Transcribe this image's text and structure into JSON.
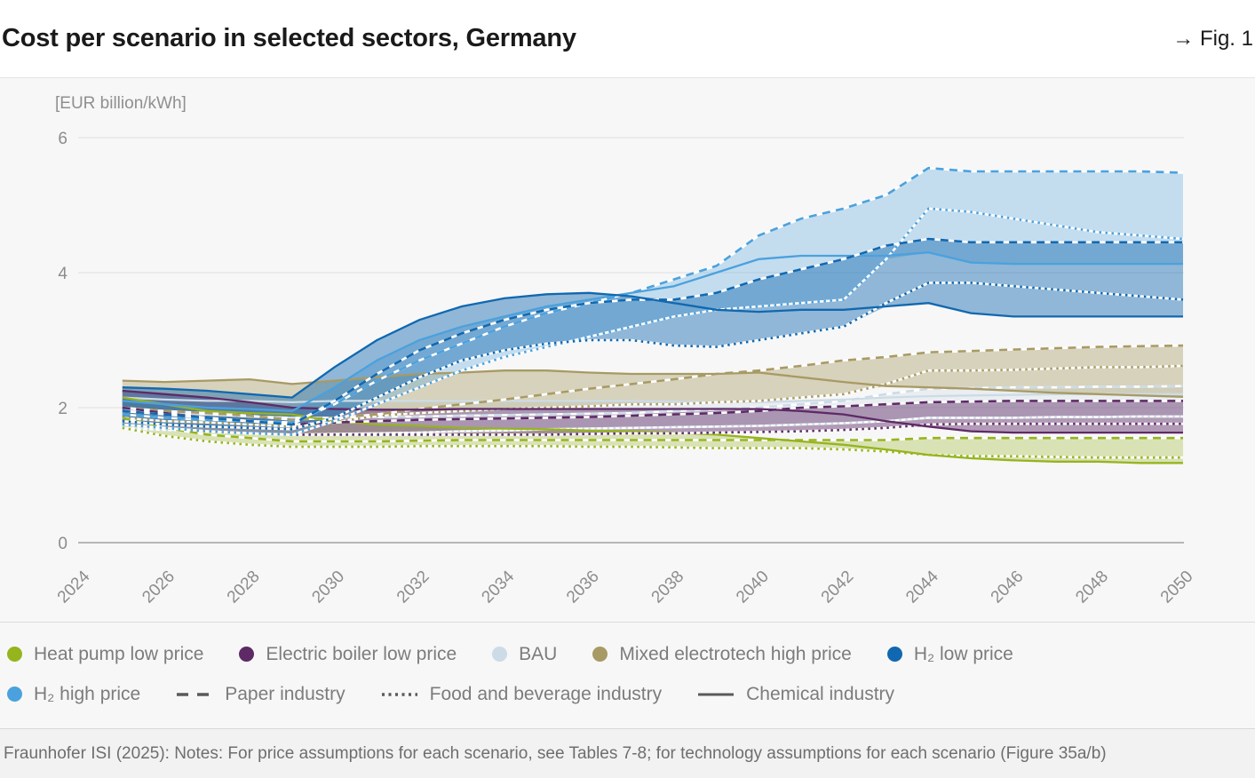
{
  "header": {
    "title": "Cost per scenario in selected sectors, Germany",
    "fig_ref": "→ Fig. 1"
  },
  "footer": {
    "source_note": "Fraunhofer ISI (2025): Notes: For price assumptions for each scenario, see Tables 7-8; for technology assumptions for each scenario (Figure 35a/b)"
  },
  "chart_data": {
    "type": "line",
    "title": "Cost per scenario in selected sectors, Germany",
    "ylabel": "[EUR billion/kWh]",
    "ylim": [
      0,
      6
    ],
    "yticks": [
      0,
      2,
      4,
      6
    ],
    "xticks": [
      2024,
      2026,
      2028,
      2030,
      2032,
      2034,
      2036,
      2038,
      2040,
      2042,
      2044,
      2046,
      2048,
      2050
    ],
    "grid": "horizontal",
    "legend_position": "bottom",
    "x": [
      2025,
      2026,
      2027,
      2028,
      2029,
      2030,
      2031,
      2032,
      2033,
      2034,
      2035,
      2036,
      2037,
      2038,
      2039,
      2040,
      2041,
      2042,
      2043,
      2044,
      2045,
      2046,
      2047,
      2048,
      2049,
      2050
    ],
    "scenarios": [
      {
        "id": "bau",
        "label": "BAU",
        "color": "#ccdbe6",
        "band_opacity": 0.3
      },
      {
        "id": "mixed",
        "label": "Mixed electrotech high price",
        "color": "#a89a64",
        "band_opacity": 0.4
      },
      {
        "id": "heat_pump",
        "label": "Heat pump low price",
        "color": "#96b41e",
        "band_opacity": 0.3
      },
      {
        "id": "electric_boiler",
        "label": "Electric boiler low price",
        "color": "#5e2a66",
        "band_opacity": 0.45
      },
      {
        "id": "h2_high",
        "label": "H₂ high price",
        "color": "#4ba1dd",
        "band_opacity": 0.3
      },
      {
        "id": "h2_low",
        "label": "H₂ low price",
        "color": "#1168b0",
        "band_opacity": 0.45
      }
    ],
    "sectors": [
      {
        "id": "food",
        "label": "Food and beverage industry",
        "style": "dotted"
      },
      {
        "id": "paper",
        "label": "Paper industry",
        "style": "dashed"
      },
      {
        "id": "chemical",
        "label": "Chemical industry",
        "style": "solid"
      }
    ],
    "series": [
      {
        "scenario": "bau",
        "sector": "chemical",
        "values": [
          2.15,
          2.12,
          2.1,
          2.1,
          2.08,
          2.1,
          2.1,
          2.1,
          2.1,
          2.1,
          2.1,
          2.1,
          2.1,
          2.09,
          2.08,
          2.08,
          2.1,
          2.12,
          2.15,
          2.17,
          2.18,
          2.19,
          2.2,
          2.2,
          2.2,
          2.2
        ]
      },
      {
        "scenario": "bau",
        "sector": "paper",
        "values": [
          1.95,
          1.92,
          1.9,
          1.87,
          1.85,
          1.85,
          1.86,
          1.87,
          1.88,
          1.89,
          1.9,
          1.91,
          1.92,
          1.95,
          1.97,
          2.0,
          2.05,
          2.1,
          2.2,
          2.28,
          2.29,
          2.3,
          2.3,
          2.31,
          2.31,
          2.32
        ]
      },
      {
        "scenario": "bau",
        "sector": "food",
        "values": [
          1.7,
          1.67,
          1.65,
          1.62,
          1.6,
          1.61,
          1.62,
          1.63,
          1.65,
          1.66,
          1.68,
          1.69,
          1.7,
          1.71,
          1.72,
          1.73,
          1.75,
          1.77,
          1.8,
          1.85,
          1.85,
          1.85,
          1.86,
          1.86,
          1.87,
          1.87
        ]
      },
      {
        "scenario": "mixed",
        "sector": "chemical",
        "values": [
          2.4,
          2.38,
          2.4,
          2.42,
          2.35,
          2.4,
          2.45,
          2.5,
          2.52,
          2.55,
          2.55,
          2.52,
          2.5,
          2.5,
          2.5,
          2.52,
          2.45,
          2.38,
          2.32,
          2.3,
          2.28,
          2.25,
          2.22,
          2.2,
          2.18,
          2.16
        ]
      },
      {
        "scenario": "mixed",
        "sector": "paper",
        "values": [
          2.0,
          1.95,
          1.92,
          1.88,
          1.82,
          1.85,
          1.9,
          1.98,
          2.05,
          2.12,
          2.2,
          2.28,
          2.35,
          2.42,
          2.5,
          2.55,
          2.62,
          2.7,
          2.75,
          2.82,
          2.84,
          2.86,
          2.88,
          2.9,
          2.91,
          2.92
        ]
      },
      {
        "scenario": "mixed",
        "sector": "food",
        "values": [
          1.85,
          1.8,
          1.78,
          1.75,
          1.72,
          1.78,
          1.88,
          1.92,
          1.95,
          1.98,
          2.0,
          2.02,
          2.05,
          2.05,
          2.08,
          2.1,
          2.15,
          2.2,
          2.35,
          2.55,
          2.55,
          2.56,
          2.58,
          2.6,
          2.6,
          2.62
        ]
      },
      {
        "scenario": "heat_pump",
        "sector": "chemical",
        "values": [
          2.15,
          2.05,
          1.95,
          1.92,
          1.9,
          1.8,
          1.75,
          1.73,
          1.7,
          1.69,
          1.68,
          1.66,
          1.65,
          1.63,
          1.6,
          1.55,
          1.5,
          1.45,
          1.38,
          1.3,
          1.25,
          1.22,
          1.2,
          1.2,
          1.18,
          1.18
        ]
      },
      {
        "scenario": "heat_pump",
        "sector": "paper",
        "values": [
          1.85,
          1.7,
          1.6,
          1.55,
          1.5,
          1.5,
          1.5,
          1.51,
          1.52,
          1.52,
          1.52,
          1.52,
          1.52,
          1.52,
          1.52,
          1.52,
          1.52,
          1.52,
          1.52,
          1.55,
          1.55,
          1.55,
          1.55,
          1.55,
          1.55,
          1.55
        ]
      },
      {
        "scenario": "heat_pump",
        "sector": "food",
        "values": [
          1.7,
          1.58,
          1.5,
          1.45,
          1.42,
          1.42,
          1.42,
          1.43,
          1.43,
          1.43,
          1.43,
          1.42,
          1.42,
          1.41,
          1.4,
          1.4,
          1.4,
          1.38,
          1.35,
          1.3,
          1.28,
          1.28,
          1.27,
          1.26,
          1.26,
          1.26
        ]
      },
      {
        "scenario": "electric_boiler",
        "sector": "chemical",
        "values": [
          2.25,
          2.2,
          2.15,
          2.08,
          2.0,
          1.98,
          1.97,
          1.97,
          1.98,
          1.98,
          1.98,
          1.98,
          1.98,
          1.98,
          1.98,
          1.98,
          1.95,
          1.9,
          1.8,
          1.72,
          1.65,
          1.63,
          1.63,
          1.63,
          1.63,
          1.63
        ]
      },
      {
        "scenario": "electric_boiler",
        "sector": "paper",
        "values": [
          2.0,
          1.92,
          1.85,
          1.8,
          1.75,
          1.78,
          1.8,
          1.82,
          1.83,
          1.84,
          1.85,
          1.86,
          1.88,
          1.9,
          1.92,
          1.95,
          2.0,
          2.02,
          2.05,
          2.08,
          2.09,
          2.1,
          2.1,
          2.1,
          2.1,
          2.1
        ]
      },
      {
        "scenario": "electric_boiler",
        "sector": "food",
        "values": [
          1.75,
          1.7,
          1.65,
          1.62,
          1.6,
          1.6,
          1.6,
          1.6,
          1.6,
          1.6,
          1.6,
          1.61,
          1.62,
          1.62,
          1.63,
          1.64,
          1.65,
          1.67,
          1.7,
          1.75,
          1.76,
          1.76,
          1.76,
          1.76,
          1.76,
          1.76
        ]
      },
      {
        "scenario": "h2_high",
        "sector": "chemical",
        "values": [
          2.1,
          2.05,
          2.0,
          1.98,
          1.95,
          2.3,
          2.7,
          3.0,
          3.2,
          3.35,
          3.5,
          3.6,
          3.7,
          3.8,
          4.0,
          4.2,
          4.25,
          4.25,
          4.25,
          4.3,
          4.15,
          4.13,
          4.13,
          4.13,
          4.13,
          4.13
        ]
      },
      {
        "scenario": "h2_high",
        "sector": "paper",
        "values": [
          1.9,
          1.85,
          1.82,
          1.8,
          1.78,
          2.05,
          2.4,
          2.7,
          2.95,
          3.2,
          3.4,
          3.55,
          3.7,
          3.9,
          4.1,
          4.55,
          4.8,
          4.95,
          5.15,
          5.55,
          5.5,
          5.5,
          5.5,
          5.5,
          5.5,
          5.48
        ]
      },
      {
        "scenario": "h2_high",
        "sector": "food",
        "values": [
          1.75,
          1.7,
          1.65,
          1.62,
          1.6,
          1.8,
          2.05,
          2.3,
          2.55,
          2.75,
          2.9,
          3.05,
          3.2,
          3.35,
          3.45,
          3.5,
          3.55,
          3.6,
          4.2,
          4.95,
          4.9,
          4.8,
          4.7,
          4.6,
          4.55,
          4.5
        ]
      },
      {
        "scenario": "h2_low",
        "sector": "chemical",
        "values": [
          2.3,
          2.28,
          2.25,
          2.2,
          2.15,
          2.6,
          3.0,
          3.3,
          3.5,
          3.62,
          3.68,
          3.7,
          3.65,
          3.55,
          3.45,
          3.42,
          3.45,
          3.45,
          3.5,
          3.55,
          3.4,
          3.35,
          3.35,
          3.35,
          3.35,
          3.35
        ]
      },
      {
        "scenario": "h2_low",
        "sector": "paper",
        "values": [
          1.95,
          1.9,
          1.85,
          1.8,
          1.75,
          2.1,
          2.5,
          2.85,
          3.1,
          3.3,
          3.45,
          3.55,
          3.6,
          3.6,
          3.7,
          3.9,
          4.05,
          4.2,
          4.4,
          4.5,
          4.45,
          4.45,
          4.45,
          4.45,
          4.45,
          4.45
        ]
      },
      {
        "scenario": "h2_low",
        "sector": "food",
        "values": [
          1.8,
          1.75,
          1.72,
          1.7,
          1.68,
          1.85,
          2.15,
          2.45,
          2.7,
          2.85,
          2.95,
          3.0,
          3.0,
          2.92,
          2.9,
          3.0,
          3.1,
          3.2,
          3.55,
          3.85,
          3.85,
          3.8,
          3.75,
          3.7,
          3.65,
          3.6
        ]
      }
    ],
    "legend": {
      "row1": [
        {
          "swatch": "dot",
          "color": "#96b41e",
          "label": "Heat pump low price"
        },
        {
          "swatch": "dot",
          "color": "#5e2a66",
          "label": "Electric boiler low price"
        },
        {
          "swatch": "dot",
          "color": "#ccdbe6",
          "label": "BAU"
        },
        {
          "swatch": "dot",
          "color": "#a89a64",
          "label": "Mixed electrotech high price"
        },
        {
          "swatch": "dot",
          "color": "#1168b0",
          "label": "H₂ low price"
        }
      ],
      "row2": [
        {
          "swatch": "dot",
          "color": "#4ba1dd",
          "label": "H₂ high price"
        },
        {
          "swatch": "dashed",
          "color": "#5a5a5a",
          "label": "Paper industry"
        },
        {
          "swatch": "dotted",
          "color": "#5a5a5a",
          "label": "Food and beverage industry"
        },
        {
          "swatch": "solid",
          "color": "#5a5a5a",
          "label": "Chemical industry"
        }
      ]
    },
    "colors": {
      "grid": "#e4e4e4",
      "axis": "#a0a0a0",
      "tick_label": "#8c8c8c"
    }
  }
}
